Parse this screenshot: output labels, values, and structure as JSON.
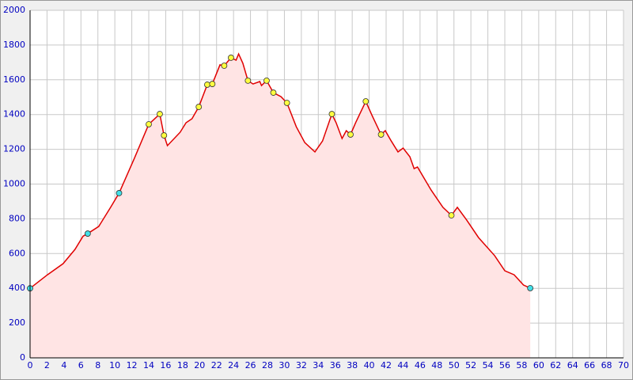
{
  "chart_data": {
    "type": "area",
    "xlim": [
      0,
      70
    ],
    "ylim": [
      0,
      2000
    ],
    "xticks": [
      0,
      2,
      4,
      6,
      8,
      10,
      12,
      14,
      16,
      18,
      20,
      22,
      24,
      26,
      28,
      30,
      32,
      34,
      36,
      38,
      40,
      42,
      44,
      46,
      48,
      50,
      52,
      54,
      56,
      58,
      60,
      62,
      64,
      66,
      68,
      70
    ],
    "yticks": [
      0,
      200,
      400,
      600,
      800,
      1000,
      1200,
      1400,
      1600,
      1800,
      2000
    ],
    "grid": true,
    "series": [
      {
        "color": "#e00000",
        "fill": "#ffe4e4",
        "x": [
          0,
          2.05,
          3.9,
          5.3,
          6.25,
          6.8,
          8.1,
          9.5,
          10.5,
          12.3,
          14.0,
          15.3,
          15.8,
          16.2,
          17.7,
          18.4,
          19.1,
          19.9,
          20.9,
          21.5,
          22.4,
          22.9,
          23.7,
          24.3,
          24.6,
          25.1,
          25.7,
          26.3,
          27.1,
          27.3,
          27.9,
          28.7,
          29.6,
          30.3,
          31.4,
          32.4,
          33.6,
          34.5,
          35.6,
          36.1,
          36.8,
          37.3,
          37.8,
          38.4,
          39.6,
          40.3,
          41.4,
          41.9,
          42.6,
          43.4,
          44.0,
          44.8,
          45.3,
          45.7,
          47.3,
          48.7,
          49.7,
          50.4,
          51.5,
          52.9,
          54.8,
          56.0,
          57.1,
          58.2,
          59.0
        ],
        "values": [
          400,
          478,
          542,
          624,
          700,
          715,
          756,
          866,
          948,
          1148,
          1344,
          1403,
          1280,
          1221,
          1298,
          1353,
          1376,
          1444,
          1572,
          1576,
          1686,
          1681,
          1727,
          1713,
          1749,
          1695,
          1595,
          1576,
          1590,
          1567,
          1595,
          1526,
          1503,
          1467,
          1330,
          1239,
          1185,
          1248,
          1403,
          1353,
          1262,
          1307,
          1285,
          1353,
          1476,
          1399,
          1285,
          1307,
          1248,
          1185,
          1207,
          1157,
          1089,
          1098,
          966,
          866,
          820,
          866,
          793,
          692,
          588,
          501,
          478,
          419,
          401
        ]
      }
    ],
    "points": [
      {
        "color": "#40e0e8",
        "x": [
          0,
          6.8,
          10.5,
          59.0
        ],
        "values": [
          400,
          715,
          948,
          401
        ]
      },
      {
        "color": "#ffff40",
        "x": [
          14.0,
          15.3,
          15.8,
          19.9,
          20.9,
          21.5,
          22.9,
          23.7,
          25.7,
          27.9,
          28.7,
          30.3,
          35.6,
          37.8,
          39.6,
          41.4,
          49.7
        ],
        "values": [
          1344,
          1403,
          1280,
          1444,
          1572,
          1576,
          1681,
          1727,
          1595,
          1595,
          1526,
          1467,
          1403,
          1285,
          1476,
          1285,
          820
        ]
      }
    ]
  }
}
